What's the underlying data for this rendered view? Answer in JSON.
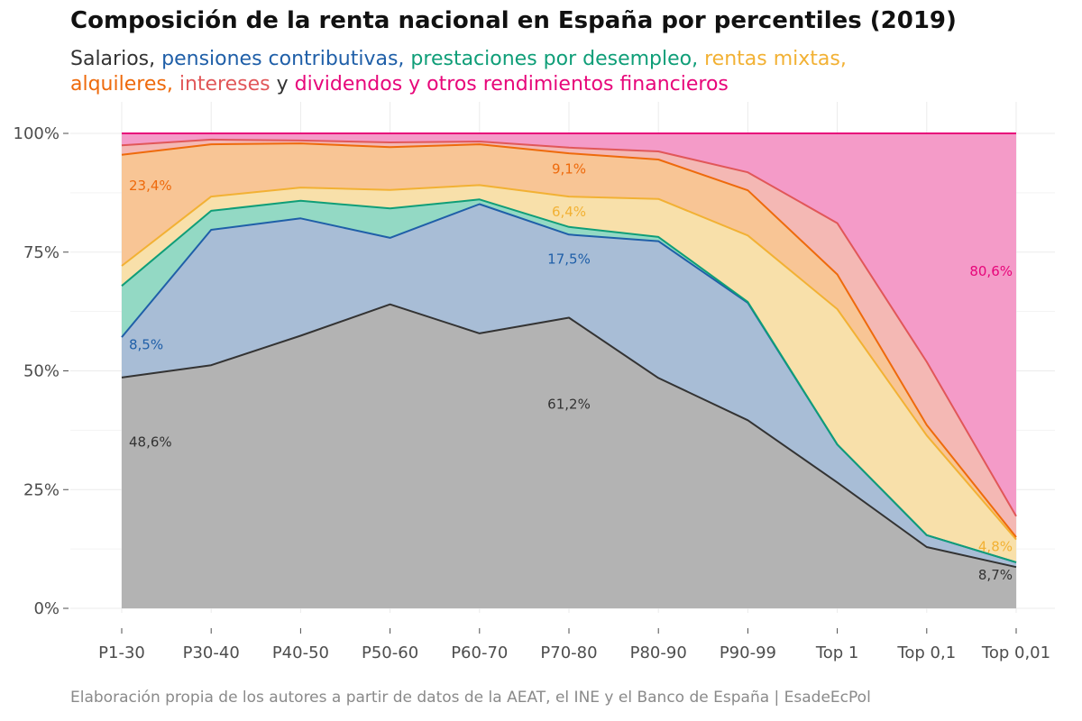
{
  "title": "Composición de la renta nacional en España por percentiles (2019)",
  "subtitle": {
    "parts": [
      {
        "text": "Salarios,",
        "color": "#333333"
      },
      {
        "text": "pensiones contributivas,",
        "color": "#1f5fa8"
      },
      {
        "text": "prestaciones por desempleo,",
        "color": "#0f9e78"
      },
      {
        "text": "rentas mixtas,",
        "color": "#f2b134"
      },
      {
        "text": "alquileres,",
        "color": "#ee6a0c"
      },
      {
        "text": "intereses",
        "color": "#e15759"
      },
      {
        "text": "y",
        "color": "#333333"
      },
      {
        "text": "dividendos y otros rendimientos financieros",
        "color": "#e7067a"
      }
    ]
  },
  "caption": "Elaboración propia de los autores a partir de datos de la AEAT, el INE y el Banco de España | EsadeEcPol",
  "chart_data": {
    "type": "area",
    "stacked": true,
    "categories": [
      "P1-30",
      "P30-40",
      "P40-50",
      "P50-60",
      "P60-70",
      "P70-80",
      "P80-90",
      "P90-99",
      "Top 1",
      "Top 0,1",
      "Top 0,01"
    ],
    "yticks": [
      "0%",
      "25%",
      "50%",
      "75%",
      "100%"
    ],
    "ylim": [
      0,
      100
    ],
    "grid": true,
    "series": [
      {
        "key": "salarios",
        "values": [
          48.6,
          51.2,
          57.4,
          64.0,
          57.9,
          61.2,
          48.5,
          39.6,
          26.5,
          12.9,
          8.7
        ],
        "fill": "#b3b3b3",
        "line": "#333333"
      },
      {
        "key": "pensiones",
        "values": [
          8.5,
          28.5,
          24.7,
          14.0,
          27.2,
          17.5,
          28.8,
          24.7,
          8.0,
          2.5,
          1.0
        ],
        "fill": "#a8bdd6",
        "line": "#1f5fa8"
      },
      {
        "key": "desempleo",
        "values": [
          10.8,
          4.0,
          3.7,
          6.2,
          1.0,
          1.6,
          0.9,
          0.2,
          0.0,
          0.0,
          0.0
        ],
        "fill": "#93d9c4",
        "line": "#0f9e78"
      },
      {
        "key": "mixtas",
        "values": [
          4.2,
          3.0,
          2.8,
          3.9,
          3.0,
          6.4,
          8.0,
          14.0,
          28.5,
          21.0,
          4.8
        ],
        "fill": "#f8e0aa",
        "line": "#f2b134"
      },
      {
        "key": "alquileres",
        "values": [
          23.4,
          11.0,
          9.3,
          9.0,
          8.6,
          9.1,
          8.3,
          9.5,
          7.3,
          2.2,
          0.5
        ],
        "fill": "#f8c595",
        "line": "#ee6a0c"
      },
      {
        "key": "intereses",
        "values": [
          2.0,
          1.0,
          0.6,
          1.0,
          0.6,
          1.2,
          1.7,
          3.8,
          10.8,
          13.3,
          4.4
        ],
        "fill": "#f4b8b4",
        "line": "#e15759"
      },
      {
        "key": "dividendos",
        "values": [
          2.5,
          1.3,
          1.5,
          1.9,
          1.7,
          3.0,
          3.8,
          8.2,
          18.9,
          48.1,
          80.6
        ],
        "fill": "#f49bc8",
        "line": "#e7067a"
      }
    ],
    "data_labels": [
      {
        "text": "48,6%",
        "series": "salarios",
        "category": "P1-30",
        "y": 35,
        "color": "#333333",
        "anchor": "start"
      },
      {
        "text": "8,5%",
        "series": "pensiones",
        "category": "P1-30",
        "y": 55.5,
        "color": "#1f5fa8",
        "anchor": "start"
      },
      {
        "text": "23,4%",
        "series": "alquileres",
        "category": "P1-30",
        "y": 89,
        "color": "#ee6a0c",
        "anchor": "start"
      },
      {
        "text": "61,2%",
        "series": "salarios",
        "category": "P70-80",
        "y": 43,
        "color": "#333333",
        "anchor": "middle"
      },
      {
        "text": "17,5%",
        "series": "pensiones",
        "category": "P70-80",
        "y": 73.5,
        "color": "#1f5fa8",
        "anchor": "middle"
      },
      {
        "text": "6,4%",
        "series": "mixtas",
        "category": "P70-80",
        "y": 83.5,
        "color": "#f2b134",
        "anchor": "middle"
      },
      {
        "text": "9,1%",
        "series": "alquileres",
        "category": "P70-80",
        "y": 92.5,
        "color": "#ee6a0c",
        "anchor": "middle"
      },
      {
        "text": "80,6%",
        "series": "dividendos",
        "category": "Top 0,01",
        "y": 71,
        "color": "#e7067a",
        "anchor": "end"
      },
      {
        "text": "4,8%",
        "series": "mixtas",
        "category": "Top 0,01",
        "y": 13,
        "color": "#f2b134",
        "anchor": "end"
      },
      {
        "text": "8,7%",
        "series": "salarios",
        "category": "Top 0,01",
        "y": 7,
        "color": "#333333",
        "anchor": "end"
      }
    ]
  }
}
